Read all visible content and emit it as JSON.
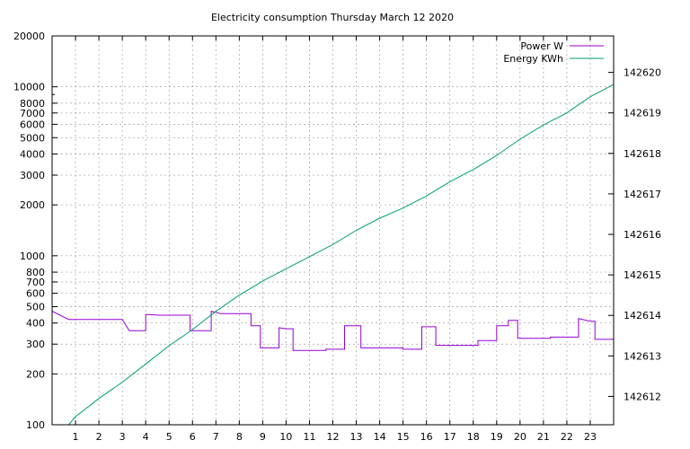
{
  "chart_data": {
    "type": "line",
    "title": "Electricity consumption Thursday March 12 2020",
    "x_ticks": [
      1,
      2,
      3,
      4,
      5,
      6,
      7,
      8,
      9,
      10,
      11,
      12,
      13,
      14,
      15,
      16,
      17,
      18,
      19,
      20,
      21,
      22,
      23
    ],
    "xlim": [
      0,
      24
    ],
    "y_scale": "log",
    "ylim": [
      100,
      20000
    ],
    "y_tick_labels": [
      100,
      200,
      300,
      400,
      500,
      600,
      700,
      800,
      1000,
      2000,
      3000,
      4000,
      5000,
      6000,
      7000,
      8000,
      10000,
      20000
    ],
    "y2lim": [
      142611.3,
      142620.9
    ],
    "y2_tick_labels": [
      142612,
      142613,
      142614,
      142615,
      142616,
      142617,
      142618,
      142619,
      142620
    ],
    "grid": true,
    "legend_position": "top-right",
    "series": [
      {
        "name": "Power W",
        "axis": "left",
        "color": "#9400d3",
        "step": true,
        "points": [
          [
            0.0,
            470
          ],
          [
            0.7,
            420
          ],
          [
            1.2,
            420
          ],
          [
            2.0,
            420
          ],
          [
            3.0,
            420
          ],
          [
            3.3,
            360
          ],
          [
            4.0,
            360
          ],
          [
            4.0,
            450
          ],
          [
            4.6,
            445
          ],
          [
            5.0,
            445
          ],
          [
            5.9,
            445
          ],
          [
            5.9,
            360
          ],
          [
            6.8,
            360
          ],
          [
            6.8,
            470
          ],
          [
            7.2,
            455
          ],
          [
            8.0,
            455
          ],
          [
            8.5,
            455
          ],
          [
            8.5,
            385
          ],
          [
            8.9,
            385
          ],
          [
            8.9,
            285
          ],
          [
            9.7,
            285
          ],
          [
            9.7,
            375
          ],
          [
            10.0,
            370
          ],
          [
            10.3,
            370
          ],
          [
            10.3,
            275
          ],
          [
            11.0,
            275
          ],
          [
            11.7,
            275
          ],
          [
            11.7,
            280
          ],
          [
            12.0,
            280
          ],
          [
            12.5,
            280
          ],
          [
            12.5,
            385
          ],
          [
            13.2,
            385
          ],
          [
            13.2,
            285
          ],
          [
            14.0,
            285
          ],
          [
            15.0,
            285
          ],
          [
            15.0,
            280
          ],
          [
            15.8,
            280
          ],
          [
            15.8,
            380
          ],
          [
            16.4,
            380
          ],
          [
            16.4,
            295
          ],
          [
            17.0,
            295
          ],
          [
            17.3,
            295
          ],
          [
            18.0,
            295
          ],
          [
            18.2,
            295
          ],
          [
            18.2,
            315
          ],
          [
            19.0,
            315
          ],
          [
            19.0,
            385
          ],
          [
            19.5,
            385
          ],
          [
            19.5,
            415
          ],
          [
            19.9,
            415
          ],
          [
            19.9,
            325
          ],
          [
            21.0,
            325
          ],
          [
            21.3,
            325
          ],
          [
            21.3,
            330
          ],
          [
            22.5,
            330
          ],
          [
            22.5,
            425
          ],
          [
            23.0,
            410
          ],
          [
            23.2,
            410
          ],
          [
            23.2,
            320
          ],
          [
            24.0,
            320
          ]
        ]
      },
      {
        "name": "Energy KWh",
        "axis": "right",
        "color": "#009e73",
        "step": false,
        "points": [
          [
            0.7,
            142611.3
          ],
          [
            1.0,
            142611.5
          ],
          [
            2.0,
            142611.95
          ],
          [
            3.0,
            142612.35
          ],
          [
            4.0,
            142612.8
          ],
          [
            5.0,
            142613.25
          ],
          [
            6.0,
            142613.65
          ],
          [
            7.0,
            142614.1
          ],
          [
            8.0,
            142614.5
          ],
          [
            9.0,
            142614.85
          ],
          [
            10.0,
            142615.15
          ],
          [
            11.0,
            142615.45
          ],
          [
            12.0,
            142615.75
          ],
          [
            13.0,
            142616.1
          ],
          [
            14.0,
            142616.4
          ],
          [
            15.0,
            142616.65
          ],
          [
            16.0,
            142616.95
          ],
          [
            17.0,
            142617.3
          ],
          [
            18.0,
            142617.6
          ],
          [
            19.0,
            142617.95
          ],
          [
            20.0,
            142618.35
          ],
          [
            21.0,
            142618.7
          ],
          [
            22.0,
            142619.0
          ],
          [
            23.0,
            142619.4
          ],
          [
            24.0,
            142619.7
          ]
        ]
      }
    ]
  }
}
